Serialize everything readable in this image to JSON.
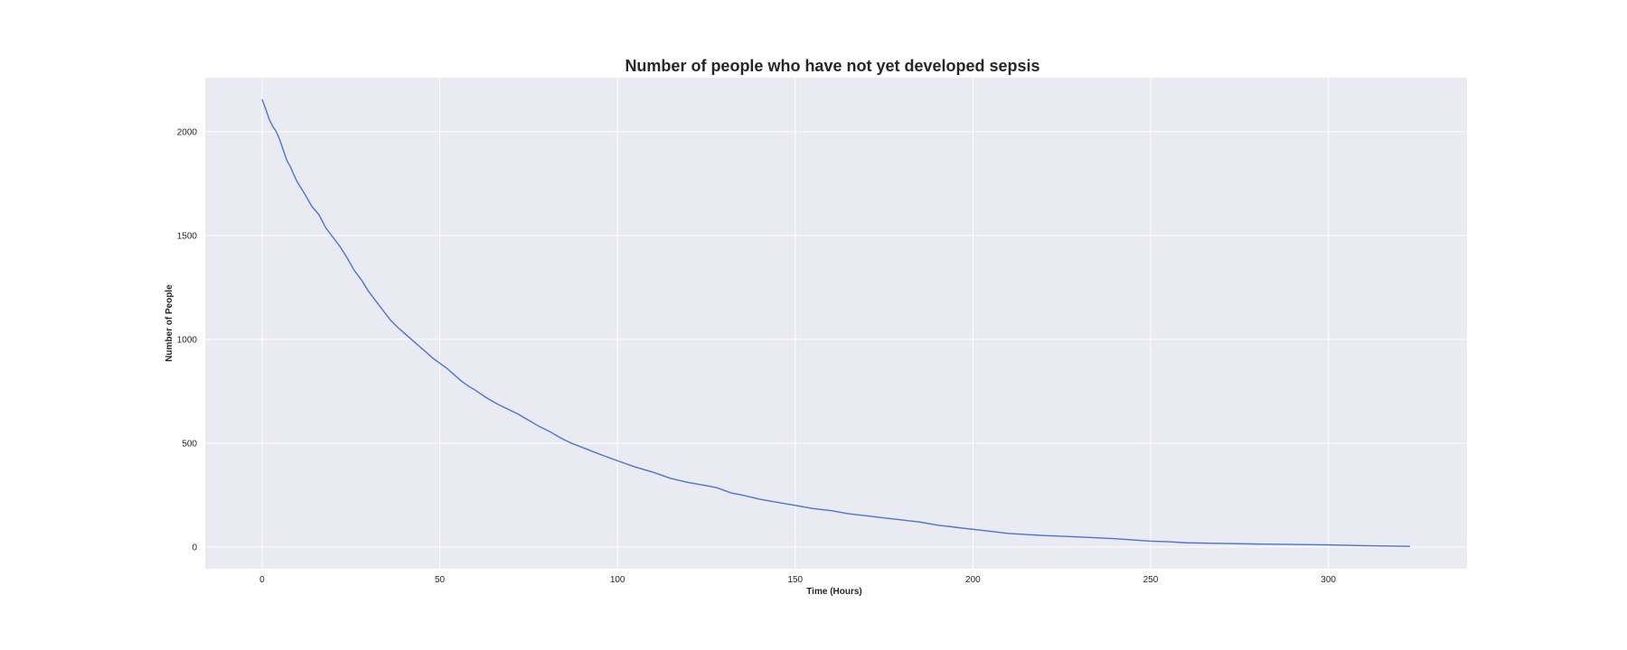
{
  "chart_data": {
    "type": "line",
    "title": "Number of people who have not yet developed sepsis",
    "xlabel": "Time (Hours)",
    "ylabel": "Number of People",
    "xlim": [
      -16,
      339
    ],
    "ylim": [
      -105,
      2260
    ],
    "xticks": [
      0,
      50,
      100,
      150,
      200,
      250,
      300
    ],
    "yticks": [
      0,
      500,
      1000,
      1500,
      2000
    ],
    "grid": true,
    "colors": {
      "background": "#eaeaf2",
      "grid": "#ffffff",
      "line": "#4c72d6"
    },
    "series": [
      {
        "x": [
          0,
          1,
          2,
          3,
          4,
          5,
          6,
          7,
          8,
          9,
          10,
          12,
          14,
          16,
          18,
          20,
          22,
          24,
          26,
          28,
          30,
          32,
          34,
          36,
          38,
          40,
          42,
          44,
          46,
          48,
          50,
          52,
          54,
          56,
          58,
          60,
          63,
          66,
          69,
          72,
          75,
          78,
          81,
          84,
          87,
          90,
          93,
          96,
          100,
          105,
          110,
          115,
          120,
          125,
          128,
          132,
          135,
          140,
          145,
          150,
          155,
          160,
          165,
          170,
          175,
          180,
          185,
          190,
          195,
          200,
          205,
          210,
          220,
          230,
          240,
          250,
          255,
          260,
          270,
          280,
          290,
          300,
          310,
          323
        ],
        "y": [
          2155,
          2110,
          2060,
          2025,
          2000,
          1960,
          1910,
          1860,
          1830,
          1790,
          1755,
          1700,
          1640,
          1600,
          1535,
          1490,
          1445,
          1390,
          1330,
          1285,
          1230,
          1185,
          1140,
          1095,
          1060,
          1030,
          1000,
          970,
          940,
          910,
          885,
          860,
          830,
          800,
          775,
          755,
          720,
          690,
          665,
          640,
          610,
          580,
          555,
          525,
          500,
          480,
          460,
          440,
          415,
          385,
          360,
          330,
          310,
          295,
          285,
          260,
          250,
          230,
          215,
          200,
          185,
          175,
          160,
          150,
          140,
          130,
          120,
          105,
          95,
          85,
          75,
          65,
          55,
          48,
          40,
          28,
          25,
          20,
          17,
          14,
          12,
          10,
          6,
          3
        ]
      }
    ]
  }
}
